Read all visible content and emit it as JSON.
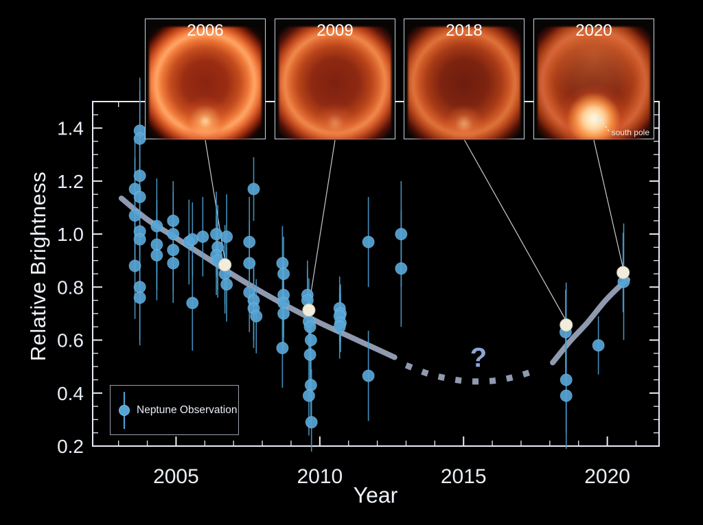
{
  "figure": {
    "legend": {
      "label": "Neptune Observation"
    },
    "question_mark": "?",
    "insets": [
      {
        "label": "2006",
        "points_to": {
          "year": 2006.7,
          "value": 0.884
        }
      },
      {
        "label": "2009",
        "points_to": {
          "year": 2009.62,
          "value": 0.713
        }
      },
      {
        "label": "2018",
        "points_to": {
          "year": 2018.57,
          "value": 0.657
        }
      },
      {
        "label": "2020",
        "points_to": {
          "year": 2020.55,
          "value": 0.855
        },
        "annotation": "south pole"
      }
    ]
  },
  "chart_data": {
    "type": "scatter",
    "title": "",
    "xlabel": "Year",
    "ylabel": "Relative Brightness",
    "xlim": [
      2002.1,
      2021.8
    ],
    "ylim": [
      0.2,
      1.5
    ],
    "x_major_ticks": [
      2005,
      2010,
      2015,
      2020
    ],
    "x_tick_labels": [
      "2005",
      "2010",
      "2015",
      "2020"
    ],
    "x_minor_step": 1,
    "y_major_ticks": [
      0.2,
      0.4,
      0.6,
      0.8,
      1.0,
      1.2,
      1.4
    ],
    "y_tick_labels": [
      "0.2",
      "0.4",
      "0.6",
      "0.8",
      "1.0",
      "1.2",
      "1.4"
    ],
    "y_minor_step": 0.05,
    "grid": false,
    "legend_position": "bottom-left",
    "series": [
      {
        "name": "Neptune Observation",
        "points": [
          [
            2003.57,
            1.17,
            0.2
          ],
          [
            2003.57,
            1.07,
            0.22
          ],
          [
            2003.57,
            0.88,
            0.2
          ],
          [
            2003.74,
            1.39,
            0.2
          ],
          [
            2003.74,
            1.36,
            0.18
          ],
          [
            2003.74,
            1.22,
            0.2
          ],
          [
            2003.74,
            1.14,
            0.22
          ],
          [
            2003.74,
            1.01,
            0.22
          ],
          [
            2003.74,
            0.98,
            0.2
          ],
          [
            2003.74,
            0.8,
            0.2
          ],
          [
            2003.74,
            0.76,
            0.18
          ],
          [
            2004.33,
            1.03,
            0.18
          ],
          [
            2004.33,
            0.96,
            0.17
          ],
          [
            2004.33,
            0.92,
            0.17
          ],
          [
            2004.9,
            1.05,
            0.15
          ],
          [
            2004.9,
            1.0,
            0.16
          ],
          [
            2004.9,
            0.94,
            0.16
          ],
          [
            2004.9,
            0.89,
            0.15
          ],
          [
            2005.45,
            0.97,
            0.16
          ],
          [
            2005.57,
            0.98,
            0.14
          ],
          [
            2005.57,
            0.74,
            0.18
          ],
          [
            2005.93,
            0.99,
            0.15
          ],
          [
            2006.4,
            1.0,
            0.16
          ],
          [
            2006.45,
            0.95,
            0.16
          ],
          [
            2006.4,
            0.92,
            0.15
          ],
          [
            2006.45,
            0.9,
            0.14
          ],
          [
            2006.7,
            0.85,
            0.15
          ],
          [
            2006.76,
            0.99,
            0.16
          ],
          [
            2006.76,
            0.81,
            0.14
          ],
          [
            2007.55,
            0.97,
            0.17
          ],
          [
            2007.55,
            0.89,
            0.16
          ],
          [
            2007.55,
            0.78,
            0.15
          ],
          [
            2007.7,
            1.17,
            0.12
          ],
          [
            2007.7,
            0.75,
            0.15
          ],
          [
            2007.7,
            0.72,
            0.15
          ],
          [
            2007.79,
            0.69,
            0.14
          ],
          [
            2008.7,
            0.89,
            0.14
          ],
          [
            2008.74,
            0.85,
            0.14
          ],
          [
            2008.74,
            0.77,
            0.13
          ],
          [
            2008.74,
            0.74,
            0.13
          ],
          [
            2008.74,
            0.7,
            0.13
          ],
          [
            2008.7,
            0.57,
            0.15
          ],
          [
            2009.57,
            0.77,
            0.13
          ],
          [
            2009.57,
            0.75,
            0.12
          ],
          [
            2009.62,
            0.67,
            0.12
          ],
          [
            2009.66,
            0.65,
            0.12
          ],
          [
            2009.69,
            0.6,
            0.13
          ],
          [
            2009.66,
            0.545,
            0.13
          ],
          [
            2009.69,
            0.43,
            0.14
          ],
          [
            2009.62,
            0.39,
            0.15
          ],
          [
            2009.71,
            0.29,
            0.2
          ],
          [
            2010.69,
            0.72,
            0.12
          ],
          [
            2010.72,
            0.7,
            0.11
          ],
          [
            2010.69,
            0.69,
            0.11
          ],
          [
            2010.72,
            0.665,
            0.11
          ],
          [
            2010.69,
            0.65,
            0.12
          ],
          [
            2011.69,
            0.97,
            0.17
          ],
          [
            2011.69,
            0.465,
            0.17
          ],
          [
            2012.83,
            1.0,
            0.2
          ],
          [
            2012.83,
            0.87,
            0.22
          ],
          [
            2018.55,
            0.63,
            0.16
          ],
          [
            2018.57,
            0.45,
            0.2
          ],
          [
            2018.57,
            0.39,
            0.2
          ],
          [
            2019.69,
            0.58,
            0.11
          ],
          [
            2020.57,
            0.82,
            0.22
          ]
        ]
      }
    ],
    "highlighted_points": [
      [
        2006.7,
        0.884,
        0.15
      ],
      [
        2009.62,
        0.713,
        0.12
      ],
      [
        2018.57,
        0.657,
        0.16
      ],
      [
        2020.55,
        0.855,
        0.15
      ]
    ],
    "trend": {
      "solid_early": [
        [
          2003.1,
          1.135
        ],
        [
          2004.0,
          1.055
        ],
        [
          2005.0,
          0.985
        ],
        [
          2006.0,
          0.915
        ],
        [
          2007.0,
          0.845
        ],
        [
          2008.0,
          0.78
        ],
        [
          2009.0,
          0.72
        ],
        [
          2010.0,
          0.665
        ],
        [
          2011.0,
          0.615
        ],
        [
          2012.0,
          0.565
        ],
        [
          2012.6,
          0.535
        ]
      ],
      "dashed_gap": [
        [
          2013.0,
          0.505
        ],
        [
          2013.8,
          0.472
        ],
        [
          2014.6,
          0.452
        ],
        [
          2015.3,
          0.444
        ],
        [
          2016.1,
          0.447
        ],
        [
          2016.8,
          0.462
        ],
        [
          2017.6,
          0.488
        ]
      ],
      "solid_late": [
        [
          2018.1,
          0.515
        ],
        [
          2018.7,
          0.595
        ],
        [
          2019.3,
          0.665
        ],
        [
          2019.9,
          0.745
        ],
        [
          2020.4,
          0.8
        ],
        [
          2020.7,
          0.828
        ]
      ]
    },
    "colors": {
      "point": "#57a5d6",
      "point_edge": "#7fc2e6",
      "error_bar": "#4d9ecf",
      "highlight_point": "#f2ecdc",
      "trend": "#b7c5e2",
      "axis": "#e9eef6",
      "question_mark": "#8ea5d6"
    }
  }
}
